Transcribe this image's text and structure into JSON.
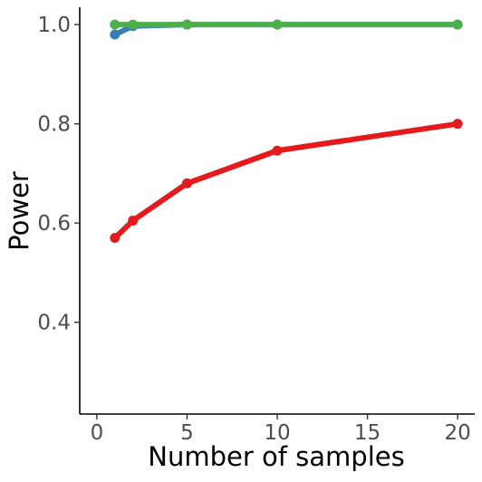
{
  "chart_data": {
    "type": "line",
    "title": "",
    "xlabel": "Number of samples",
    "ylabel": "Power",
    "xlim": [
      -0.95,
      20.95
    ],
    "ylim": [
      0.215,
      1.035
    ],
    "x_ticks": [
      0,
      5,
      10,
      15,
      20
    ],
    "x_tick_labels": [
      "0",
      "5",
      "10",
      "15",
      "20"
    ],
    "y_ticks": [
      0.4,
      0.6,
      0.8,
      1.0
    ],
    "y_tick_labels": [
      "0.4",
      "0.6",
      "0.8",
      "1.0"
    ],
    "grid": false,
    "legend": "none",
    "x": [
      1,
      2,
      5,
      10,
      20
    ],
    "series": [
      {
        "color": "#e41a1c",
        "values": [
          0.57,
          0.605,
          0.68,
          0.746,
          0.8
        ]
      },
      {
        "color": "#377eb8",
        "values": [
          0.98,
          0.997,
          1.0,
          1.0,
          1.0
        ]
      },
      {
        "color": "#4daf4a",
        "values": [
          1.0,
          1.0,
          1.0,
          1.0,
          1.0
        ]
      }
    ]
  }
}
